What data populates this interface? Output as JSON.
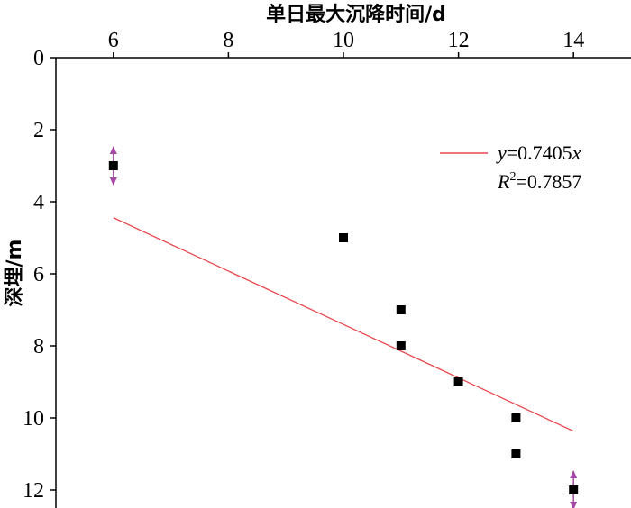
{
  "chart_data": {
    "type": "scatter",
    "xlabel": "单日最大沉降时间/d",
    "ylabel": "深埋/m",
    "x_axis_position": "top",
    "y_axis_inverted": true,
    "xlim": [
      5,
      15
    ],
    "ylim": [
      0,
      12.5
    ],
    "x_ticks": [
      6,
      8,
      10,
      12,
      14
    ],
    "y_ticks": [
      0,
      2,
      4,
      6,
      8,
      10,
      12
    ],
    "x_tick_labels": [
      "6",
      "8",
      "10",
      "12",
      "14"
    ],
    "y_tick_labels": [
      "0",
      "2",
      "4",
      "6",
      "8",
      "10",
      "12"
    ],
    "grid": false,
    "series": [
      {
        "kind": "points",
        "marker": "square",
        "color": "#000000",
        "points": [
          {
            "x": 6,
            "y": 3
          },
          {
            "x": 10,
            "y": 5
          },
          {
            "x": 11,
            "y": 7
          },
          {
            "x": 11,
            "y": 8
          },
          {
            "x": 12,
            "y": 9
          },
          {
            "x": 13,
            "y": 10
          },
          {
            "x": 13,
            "y": 11
          },
          {
            "x": 14,
            "y": 12
          }
        ]
      },
      {
        "kind": "fit-line",
        "color": "#e8474d",
        "slope": 0.7405,
        "x_range": [
          6,
          14
        ]
      }
    ],
    "error_markers": [
      {
        "x": 6,
        "y": 3,
        "color": "#a349a4"
      },
      {
        "x": 14,
        "y": 12,
        "color": "#a349a4"
      }
    ],
    "legend": {
      "placement": "top-right",
      "line1": {
        "var": "y",
        "rest": "=0.7405",
        "suffix": "x"
      },
      "line2": {
        "var": "R",
        "sup": "2",
        "rest": "=0.7857"
      }
    }
  }
}
